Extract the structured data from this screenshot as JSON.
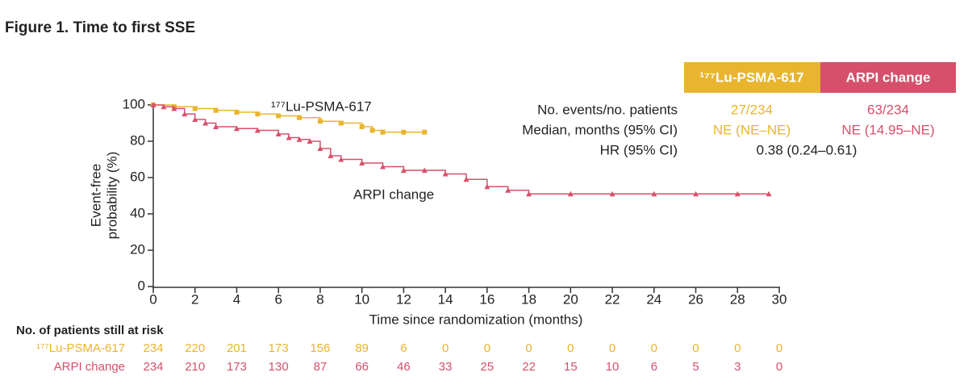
{
  "chart_data": {
    "type": "step",
    "title": "Figure 1. Time to first SSE",
    "xlabel": "Time since randomization (months)",
    "ylabel": [
      "Event-free",
      "probability (%)"
    ],
    "xlim": [
      0,
      30
    ],
    "xticks": [
      0,
      2,
      4,
      6,
      8,
      10,
      12,
      14,
      16,
      18,
      20,
      22,
      24,
      26,
      28,
      30
    ],
    "ylim": [
      0,
      100
    ],
    "yticks": [
      0,
      20,
      40,
      60,
      80,
      100
    ],
    "series": [
      {
        "name": "¹⁷⁷Lu-PSMA-617",
        "color": "#e9b52f",
        "marker": "square",
        "x": [
          0,
          1,
          2,
          3,
          4,
          5,
          6,
          7,
          8,
          9,
          10,
          10.5,
          11,
          12,
          13
        ],
        "values": [
          100,
          99,
          98,
          97,
          96,
          95,
          94,
          93,
          91,
          90,
          88,
          86,
          85,
          85,
          85
        ]
      },
      {
        "name": "ARPI change",
        "color": "#d6506b",
        "marker": "triangle",
        "x": [
          0,
          0.5,
          1,
          1.5,
          2,
          2.5,
          3,
          4,
          5,
          6,
          6.5,
          7,
          7.5,
          8,
          8.5,
          9,
          10,
          11,
          12,
          13,
          14,
          15,
          16,
          17,
          18,
          20,
          22,
          24,
          26,
          28,
          29.5
        ],
        "values": [
          100,
          99,
          98,
          95,
          92,
          90,
          88,
          87,
          86,
          84,
          82,
          81,
          80,
          76,
          72,
          70,
          68,
          66,
          64,
          64,
          62,
          59,
          55,
          53,
          51,
          51,
          51,
          51,
          51,
          51,
          51
        ]
      }
    ],
    "summary": {
      "rows": [
        {
          "label": "No. events/no. patients",
          "values": [
            "27/234",
            "63/234"
          ]
        },
        {
          "label": "Median, months (95% CI)",
          "values": [
            "NE (NE–NE)",
            "NE (14.95–NE)"
          ]
        },
        {
          "label": "HR (95% CI)",
          "value": "0.38 (0.24–0.61)"
        }
      ]
    },
    "at_risk": {
      "title": "No. of patients still at risk",
      "rows": [
        [
          234,
          220,
          201,
          173,
          156,
          89,
          6,
          0,
          0,
          0,
          0,
          0,
          0,
          0,
          0,
          0
        ],
        [
          234,
          210,
          173,
          130,
          87,
          66,
          46,
          33,
          25,
          22,
          15,
          10,
          6,
          5,
          3,
          0
        ]
      ]
    }
  }
}
